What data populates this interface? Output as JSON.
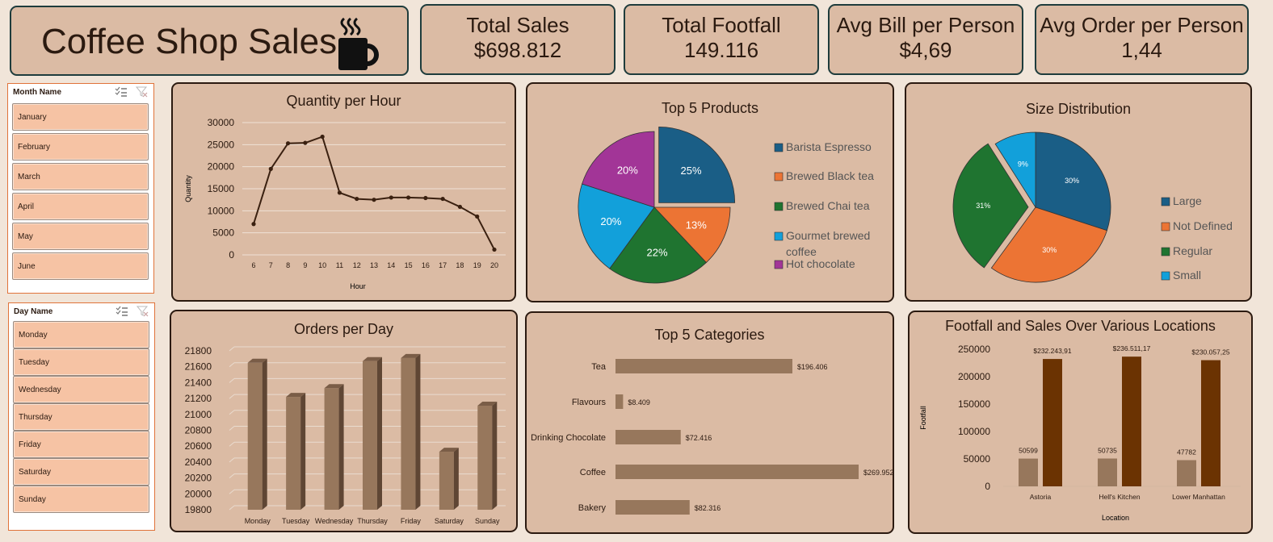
{
  "header": {
    "title": "Coffee Shop Sales",
    "icon": "coffee-cup-icon"
  },
  "kpis": [
    {
      "label": "Total Sales",
      "value": "$698.812"
    },
    {
      "label": "Total Footfall",
      "value": "149.116"
    },
    {
      "label": "Avg Bill per Person",
      "value": "$4,69"
    },
    {
      "label": "Avg Order per Person",
      "value": "1,44"
    }
  ],
  "month_slicer": {
    "header": "Month Name",
    "items": [
      "January",
      "February",
      "March",
      "April",
      "May",
      "June"
    ]
  },
  "day_slicer": {
    "header": "Day Name",
    "items": [
      "Monday",
      "Tuesday",
      "Wednesday",
      "Thursday",
      "Friday",
      "Saturday",
      "Sunday"
    ]
  },
  "colors": {
    "card_bg": "#dbbba4",
    "page_bg": "#f1e5d9",
    "line": "#3a2010",
    "bar_light": "#97775c",
    "bar_dark": "#6b3302",
    "pie": [
      "#1a5e86",
      "#ec7434",
      "#1f7430",
      "#12a0da",
      "#a23597"
    ],
    "slicer_item": "#f6c3a4",
    "slicer_border": "#e0733a"
  },
  "chart_data": [
    {
      "type": "line",
      "title": "Quantity per Hour",
      "xlabel": "Hour",
      "ylabel": "Quantity",
      "x": [
        "6",
        "7",
        "8",
        "9",
        "10",
        "11",
        "12",
        "13",
        "14",
        "15",
        "16",
        "17",
        "18",
        "19",
        "20"
      ],
      "values": [
        7000,
        19500,
        25300,
        25400,
        26800,
        14100,
        12700,
        12500,
        13000,
        13000,
        12900,
        12700,
        10900,
        8700,
        1200
      ],
      "ylim": [
        0,
        30000
      ],
      "yticks": [
        "30000",
        "25000",
        "20000",
        "15000",
        "10000",
        "5000",
        "0"
      ],
      "grid": true
    },
    {
      "type": "pie",
      "title": "Top 5 Products",
      "labels": [
        "Barista Espresso",
        "Brewed Black tea",
        "Brewed Chai tea",
        "Gourmet brewed coffee",
        "Hot chocolate"
      ],
      "values": [
        25,
        13,
        22,
        20,
        20
      ],
      "data_labels": [
        "25%",
        "13%",
        "22%",
        "20%",
        "20%"
      ],
      "legend": "right"
    },
    {
      "type": "pie",
      "title": "Size Distribution",
      "labels": [
        "Large",
        "Not Defined",
        "Regular",
        "Small"
      ],
      "values": [
        30,
        30,
        31,
        9
      ],
      "data_labels": [
        "30%",
        "30%",
        "31%",
        "9%"
      ],
      "legend": "right"
    },
    {
      "type": "bar",
      "title": "Orders per Day",
      "categories": [
        "Monday",
        "Tuesday",
        "Wednesday",
        "Thursday",
        "Friday",
        "Saturday",
        "Sunday"
      ],
      "values": [
        21650,
        21220,
        21330,
        21670,
        21710,
        20530,
        21110
      ],
      "ylim": [
        19800,
        21800
      ],
      "yticks": [
        "21800",
        "21600",
        "21400",
        "21200",
        "21000",
        "20800",
        "20600",
        "20400",
        "20200",
        "20000",
        "19800"
      ],
      "grid": true
    },
    {
      "type": "bar",
      "title": "Top 5 Categories",
      "categories": [
        "Tea",
        "Flavours",
        "Drinking Chocolate",
        "Coffee",
        "Bakery"
      ],
      "values": [
        196406,
        8409,
        72416,
        269952,
        82316
      ],
      "data_labels": [
        "$196.406",
        "$8.409",
        "$72.416",
        "$269.952",
        "$82.316"
      ]
    },
    {
      "type": "bar",
      "title": "Footfall and Sales Over Various Locations",
      "xlabel": "Location",
      "ylabel": "Footfall",
      "categories": [
        "Astoria",
        "Hell's Kitchen",
        "Lower Manhattan"
      ],
      "series": [
        {
          "values": [
            50599,
            50735,
            47782
          ],
          "data_labels": [
            "50599",
            "50735",
            "47782"
          ]
        },
        {
          "values": [
            232243.91,
            236511.17,
            230057.25
          ],
          "data_labels": [
            "$232.243,91",
            "$236.511,17",
            "$230.057,25"
          ]
        }
      ],
      "ylim": [
        0,
        250000
      ],
      "yticks": [
        "250000",
        "200000",
        "150000",
        "100000",
        "50000",
        "0"
      ]
    }
  ]
}
